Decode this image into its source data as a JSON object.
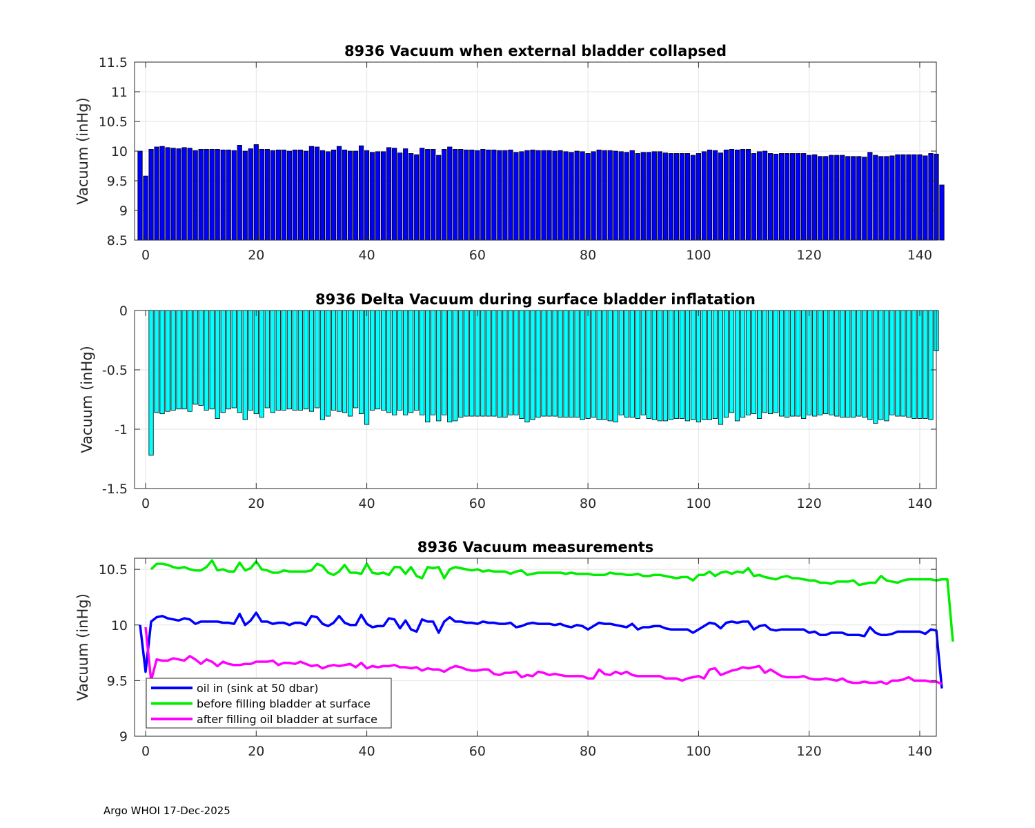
{
  "footer": "Argo WHOI 17-Dec-2025",
  "colors": {
    "blue": "#0000ff",
    "green": "#00ee00",
    "magenta": "#ff00ff",
    "cyan": "#00ffff",
    "bar_dark": "#0a0aa0"
  },
  "chart_data": [
    {
      "type": "bar",
      "title": "8936 Vacuum when external bladder collapsed",
      "xlabel": "",
      "ylabel": "Vacuum (inHg)",
      "xlim": [
        -2,
        143
      ],
      "ylim": [
        8.5,
        11.5
      ],
      "xticks": [
        0,
        20,
        40,
        60,
        80,
        100,
        120,
        140
      ],
      "yticks": [
        8.5,
        9,
        9.5,
        10,
        10.5,
        11,
        11.5
      ],
      "ytick_labels": [
        "8.5",
        "9",
        "9.5",
        "10",
        "10.5",
        "11",
        "11.5"
      ],
      "grid": true,
      "bar_color": "#0000ff",
      "x_start": -1,
      "values": [
        10.0,
        9.58,
        10.03,
        10.07,
        10.08,
        10.06,
        10.05,
        10.04,
        10.06,
        10.05,
        10.01,
        10.03,
        10.03,
        10.03,
        10.03,
        10.02,
        10.02,
        10.01,
        10.1,
        10.0,
        10.04,
        10.11,
        10.03,
        10.03,
        10.01,
        10.02,
        10.02,
        10.0,
        10.02,
        10.02,
        10.0,
        10.08,
        10.07,
        10.01,
        9.99,
        10.02,
        10.08,
        10.02,
        10.0,
        10.0,
        10.09,
        10.01,
        9.98,
        9.99,
        9.99,
        10.06,
        10.05,
        9.97,
        10.04,
        9.96,
        9.94,
        10.05,
        10.03,
        10.03,
        9.93,
        10.03,
        10.07,
        10.03,
        10.03,
        10.02,
        10.02,
        10.01,
        10.03,
        10.02,
        10.02,
        10.01,
        10.01,
        10.02,
        9.98,
        9.99,
        10.01,
        10.02,
        10.01,
        10.01,
        10.01,
        10.0,
        10.01,
        9.99,
        9.98,
        10.0,
        9.99,
        9.96,
        9.99,
        10.02,
        10.01,
        10.01,
        10.0,
        9.99,
        9.98,
        10.01,
        9.96,
        9.98,
        9.98,
        9.99,
        9.99,
        9.97,
        9.96,
        9.96,
        9.96,
        9.96,
        9.93,
        9.96,
        9.99,
        10.02,
        10.01,
        9.97,
        10.02,
        10.03,
        10.02,
        10.03,
        10.03,
        9.96,
        9.99,
        10.0,
        9.96,
        9.95,
        9.96,
        9.96,
        9.96,
        9.96,
        9.96,
        9.93,
        9.94,
        9.91,
        9.91,
        9.93,
        9.93,
        9.93,
        9.91,
        9.91,
        9.91,
        9.9,
        9.98,
        9.93,
        9.91,
        9.91,
        9.92,
        9.94,
        9.94,
        9.94,
        9.94,
        9.94,
        9.92,
        9.96,
        9.95,
        9.43
      ]
    },
    {
      "type": "bar",
      "title": "8936 Delta Vacuum during surface bladder inflatation",
      "xlabel": "",
      "ylabel": "Vacuum (inHg)",
      "xlim": [
        -2,
        143
      ],
      "ylim": [
        -1.5,
        0
      ],
      "xticks": [
        0,
        20,
        40,
        60,
        80,
        100,
        120,
        140
      ],
      "yticks": [
        -1.5,
        -1,
        -0.5,
        0
      ],
      "ytick_labels": [
        "-1.5",
        "-1",
        "-0.5",
        "0"
      ],
      "grid": true,
      "bar_color": "#00ffff",
      "x_start": 1,
      "values": [
        -1.22,
        -0.86,
        -0.87,
        -0.85,
        -0.84,
        -0.83,
        -0.83,
        -0.85,
        -0.79,
        -0.8,
        -0.84,
        -0.83,
        -0.91,
        -0.86,
        -0.83,
        -0.82,
        -0.86,
        -0.92,
        -0.84,
        -0.87,
        -0.9,
        -0.82,
        -0.86,
        -0.84,
        -0.84,
        -0.83,
        -0.84,
        -0.84,
        -0.83,
        -0.85,
        -0.82,
        -0.92,
        -0.89,
        -0.84,
        -0.85,
        -0.86,
        -0.89,
        -0.82,
        -0.87,
        -0.96,
        -0.84,
        -0.83,
        -0.84,
        -0.86,
        -0.88,
        -0.84,
        -0.88,
        -0.86,
        -0.84,
        -0.88,
        -0.94,
        -0.88,
        -0.93,
        -0.88,
        -0.94,
        -0.93,
        -0.9,
        -0.89,
        -0.89,
        -0.89,
        -0.89,
        -0.89,
        -0.89,
        -0.9,
        -0.9,
        -0.88,
        -0.88,
        -0.91,
        -0.94,
        -0.92,
        -0.9,
        -0.89,
        -0.89,
        -0.89,
        -0.9,
        -0.9,
        -0.9,
        -0.9,
        -0.92,
        -0.91,
        -0.9,
        -0.92,
        -0.92,
        -0.93,
        -0.94,
        -0.88,
        -0.9,
        -0.9,
        -0.91,
        -0.88,
        -0.91,
        -0.92,
        -0.93,
        -0.93,
        -0.92,
        -0.91,
        -0.91,
        -0.93,
        -0.92,
        -0.94,
        -0.92,
        -0.92,
        -0.91,
        -0.96,
        -0.9,
        -0.86,
        -0.93,
        -0.9,
        -0.88,
        -0.87,
        -0.91,
        -0.86,
        -0.87,
        -0.86,
        -0.89,
        -0.9,
        -0.89,
        -0.89,
        -0.91,
        -0.88,
        -0.89,
        -0.88,
        -0.87,
        -0.88,
        -0.89,
        -0.9,
        -0.9,
        -0.9,
        -0.89,
        -0.9,
        -0.92,
        -0.95,
        -0.92,
        -0.93,
        -0.88,
        -0.89,
        -0.89,
        -0.9,
        -0.91,
        -0.91,
        -0.91,
        -0.92,
        -0.34
      ]
    },
    {
      "type": "line",
      "title": "8936 Vacuum measurements",
      "xlabel": "",
      "ylabel": "Vacuum (inHg)",
      "xlim": [
        -2,
        143
      ],
      "ylim": [
        9,
        10.6
      ],
      "xticks": [
        0,
        20,
        40,
        60,
        80,
        100,
        120,
        140
      ],
      "yticks": [
        9,
        9.5,
        10,
        10.5
      ],
      "ytick_labels": [
        "9",
        "9.5",
        "10",
        "10.5"
      ],
      "grid": true,
      "legend": "bottom-left",
      "series": [
        {
          "name": "oil in (sink at 50 dbar)",
          "color": "#0000ff",
          "x_start": -1,
          "values": [
            10.0,
            9.58,
            10.03,
            10.07,
            10.08,
            10.06,
            10.05,
            10.04,
            10.06,
            10.05,
            10.01,
            10.03,
            10.03,
            10.03,
            10.03,
            10.02,
            10.02,
            10.01,
            10.1,
            10.0,
            10.04,
            10.11,
            10.03,
            10.03,
            10.01,
            10.02,
            10.02,
            10.0,
            10.02,
            10.02,
            10.0,
            10.08,
            10.07,
            10.01,
            9.99,
            10.02,
            10.08,
            10.02,
            10.0,
            10.0,
            10.09,
            10.01,
            9.98,
            9.99,
            9.99,
            10.06,
            10.05,
            9.97,
            10.04,
            9.96,
            9.94,
            10.05,
            10.03,
            10.03,
            9.93,
            10.03,
            10.07,
            10.03,
            10.03,
            10.02,
            10.02,
            10.01,
            10.03,
            10.02,
            10.02,
            10.01,
            10.01,
            10.02,
            9.98,
            9.99,
            10.01,
            10.02,
            10.01,
            10.01,
            10.01,
            10.0,
            10.01,
            9.99,
            9.98,
            10.0,
            9.99,
            9.96,
            9.99,
            10.02,
            10.01,
            10.01,
            10.0,
            9.99,
            9.98,
            10.01,
            9.96,
            9.98,
            9.98,
            9.99,
            9.99,
            9.97,
            9.96,
            9.96,
            9.96,
            9.96,
            9.93,
            9.96,
            9.99,
            10.02,
            10.01,
            9.97,
            10.02,
            10.03,
            10.02,
            10.03,
            10.03,
            9.96,
            9.99,
            10.0,
            9.96,
            9.95,
            9.96,
            9.96,
            9.96,
            9.96,
            9.96,
            9.93,
            9.94,
            9.91,
            9.91,
            9.93,
            9.93,
            9.93,
            9.91,
            9.91,
            9.91,
            9.9,
            9.98,
            9.93,
            9.91,
            9.91,
            9.92,
            9.94,
            9.94,
            9.94,
            9.94,
            9.94,
            9.92,
            9.96,
            9.95,
            9.43
          ]
        },
        {
          "name": "before filling bladder at surface",
          "color": "#00ee00",
          "x_start": 1,
          "values": [
            10.5,
            10.55,
            10.55,
            10.54,
            10.52,
            10.51,
            10.52,
            10.5,
            10.49,
            10.49,
            10.52,
            10.58,
            10.49,
            10.5,
            10.48,
            10.48,
            10.56,
            10.49,
            10.51,
            10.57,
            10.5,
            10.49,
            10.47,
            10.47,
            10.49,
            10.48,
            10.48,
            10.48,
            10.48,
            10.49,
            10.55,
            10.53,
            10.47,
            10.45,
            10.48,
            10.54,
            10.47,
            10.47,
            10.46,
            10.55,
            10.47,
            10.46,
            10.47,
            10.45,
            10.52,
            10.52,
            10.46,
            10.52,
            10.44,
            10.42,
            10.52,
            10.51,
            10.52,
            10.42,
            10.5,
            10.52,
            10.51,
            10.5,
            10.49,
            10.5,
            10.48,
            10.49,
            10.48,
            10.48,
            10.48,
            10.46,
            10.48,
            10.49,
            10.45,
            10.46,
            10.47,
            10.47,
            10.47,
            10.47,
            10.47,
            10.46,
            10.47,
            10.46,
            10.46,
            10.46,
            10.45,
            10.45,
            10.45,
            10.47,
            10.46,
            10.46,
            10.45,
            10.45,
            10.46,
            10.44,
            10.44,
            10.45,
            10.45,
            10.44,
            10.43,
            10.42,
            10.43,
            10.43,
            10.4,
            10.45,
            10.45,
            10.48,
            10.44,
            10.47,
            10.48,
            10.46,
            10.48,
            10.47,
            10.51,
            10.44,
            10.45,
            10.43,
            10.42,
            10.41,
            10.43,
            10.44,
            10.42,
            10.42,
            10.41,
            10.4,
            10.4,
            10.38,
            10.38,
            10.37,
            10.39,
            10.39,
            10.39,
            10.4,
            10.36,
            10.37,
            10.38,
            10.38,
            10.44,
            10.4,
            10.39,
            10.38,
            10.4,
            10.41,
            10.41,
            10.41,
            10.41,
            10.41,
            10.4,
            10.41,
            10.41,
            9.85
          ]
        },
        {
          "name": "after filling oil bladder at surface",
          "color": "#ff00ff",
          "x_start": 0,
          "values": [
            9.98,
            9.5,
            9.69,
            9.68,
            9.68,
            9.7,
            9.69,
            9.68,
            9.72,
            9.69,
            9.65,
            9.69,
            9.67,
            9.63,
            9.67,
            9.65,
            9.64,
            9.64,
            9.65,
            9.65,
            9.67,
            9.67,
            9.67,
            9.68,
            9.64,
            9.66,
            9.66,
            9.65,
            9.67,
            9.65,
            9.63,
            9.64,
            9.61,
            9.63,
            9.64,
            9.63,
            9.64,
            9.65,
            9.62,
            9.66,
            9.61,
            9.63,
            9.62,
            9.63,
            9.63,
            9.64,
            9.62,
            9.62,
            9.61,
            9.62,
            9.59,
            9.61,
            9.6,
            9.6,
            9.58,
            9.61,
            9.63,
            9.62,
            9.6,
            9.59,
            9.59,
            9.6,
            9.6,
            9.56,
            9.55,
            9.57,
            9.57,
            9.58,
            9.53,
            9.55,
            9.54,
            9.58,
            9.57,
            9.55,
            9.56,
            9.55,
            9.54,
            9.54,
            9.54,
            9.54,
            9.52,
            9.52,
            9.6,
            9.56,
            9.55,
            9.58,
            9.56,
            9.58,
            9.55,
            9.54,
            9.54,
            9.54,
            9.54,
            9.54,
            9.52,
            9.52,
            9.52,
            9.5,
            9.52,
            9.53,
            9.54,
            9.52,
            9.6,
            9.61,
            9.55,
            9.57,
            9.59,
            9.6,
            9.62,
            9.61,
            9.62,
            9.63,
            9.57,
            9.6,
            9.57,
            9.54,
            9.53,
            9.53,
            9.53,
            9.54,
            9.52,
            9.51,
            9.51,
            9.52,
            9.51,
            9.5,
            9.52,
            9.49,
            9.48,
            9.48,
            9.49,
            9.48,
            9.48,
            9.49,
            9.47,
            9.5,
            9.5,
            9.51,
            9.53,
            9.5,
            9.5,
            9.5,
            9.49,
            9.49,
            9.47
          ]
        }
      ]
    }
  ]
}
